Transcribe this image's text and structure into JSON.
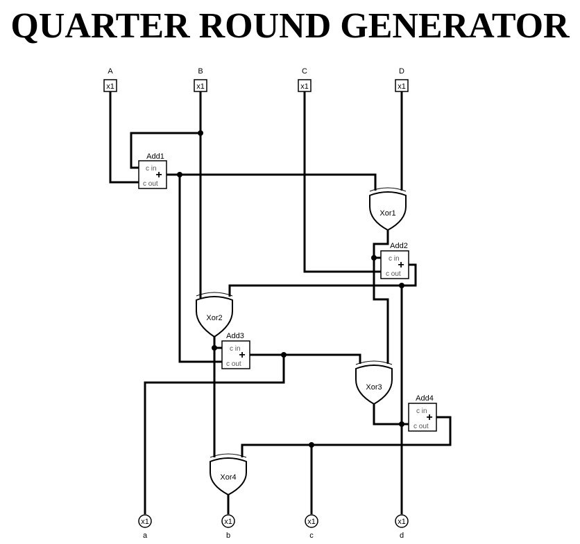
{
  "title": "QUARTER ROUND GENERATOR",
  "inputs": [
    {
      "id": "A",
      "label": "A",
      "width": "x1"
    },
    {
      "id": "B",
      "label": "B",
      "width": "x1"
    },
    {
      "id": "C",
      "label": "C",
      "width": "x1"
    },
    {
      "id": "D",
      "label": "D",
      "width": "x1"
    }
  ],
  "outputs": [
    {
      "id": "a",
      "label": "a",
      "width": "x1"
    },
    {
      "id": "b",
      "label": "b",
      "width": "x1"
    },
    {
      "id": "c",
      "label": "c",
      "width": "x1"
    },
    {
      "id": "d",
      "label": "d",
      "width": "x1"
    }
  ],
  "adders": [
    {
      "id": "add1",
      "name": "Add1",
      "cin": "c in",
      "cout": "c out",
      "op": "+"
    },
    {
      "id": "add2",
      "name": "Add2",
      "cin": "c in",
      "cout": "c out",
      "op": "+"
    },
    {
      "id": "add3",
      "name": "Add3",
      "cin": "c in",
      "cout": "c out",
      "op": "+"
    },
    {
      "id": "add4",
      "name": "Add4",
      "cin": "c in",
      "cout": "c out",
      "op": "+"
    }
  ],
  "xors": [
    {
      "id": "xor1",
      "name": "Xor1"
    },
    {
      "id": "xor2",
      "name": "Xor2"
    },
    {
      "id": "xor3",
      "name": "Xor3"
    },
    {
      "id": "xor4",
      "name": "Xor4"
    }
  ]
}
